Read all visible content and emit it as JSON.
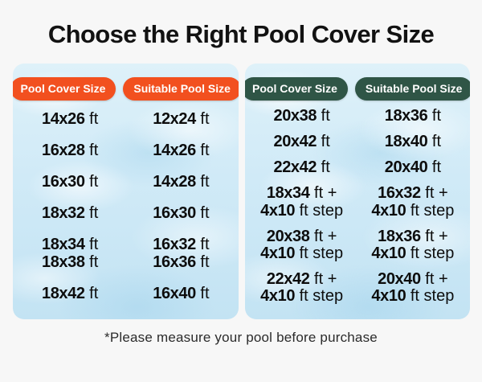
{
  "title": "Choose the Right Pool Cover Size",
  "footnote": "*Please measure your pool before purchase",
  "colors": {
    "page_background": "#f7f7f7",
    "title_text": "#121212",
    "panel_water_blue": "#cfe9f6",
    "left_accent_orange": "#F2501F",
    "right_accent_green": "#2F5546",
    "pill_text": "#FFFFFF",
    "table_text": "#0d0d0d"
  },
  "panels": [
    {
      "name": "standard-sizes",
      "accent": "#F2501F",
      "headers": [
        "Pool Cover Size",
        "Suitable Pool Size"
      ],
      "rows": [
        {
          "cover": [
            "14x26 ft"
          ],
          "pool": [
            "12x24 ft"
          ]
        },
        {
          "cover": [
            "16x28 ft"
          ],
          "pool": [
            "14x26 ft"
          ]
        },
        {
          "cover": [
            "16x30 ft"
          ],
          "pool": [
            "14x28 ft"
          ]
        },
        {
          "cover": [
            "18x32 ft"
          ],
          "pool": [
            "16x30 ft"
          ]
        },
        {
          "cover": [
            "18x34 ft",
            "18x38 ft"
          ],
          "pool": [
            "16x32 ft",
            "16x36 ft"
          ]
        },
        {
          "cover": [
            "18x42 ft"
          ],
          "pool": [
            "16x40 ft"
          ]
        }
      ]
    },
    {
      "name": "large-and-step-sizes",
      "accent": "#2F5546",
      "headers": [
        "Pool Cover Size",
        "Suitable Pool Size"
      ],
      "rows": [
        {
          "cover": [
            "20x38 ft"
          ],
          "pool": [
            "18x36 ft"
          ]
        },
        {
          "cover": [
            "20x42 ft"
          ],
          "pool": [
            "18x40 ft"
          ]
        },
        {
          "cover": [
            "22x42 ft"
          ],
          "pool": [
            "20x40 ft"
          ]
        },
        {
          "cover": [
            "18x34 ft +",
            "4x10 ft step"
          ],
          "pool": [
            "16x32 ft +",
            "4x10 ft step"
          ]
        },
        {
          "cover": [
            "20x38 ft +",
            "4x10 ft step"
          ],
          "pool": [
            "18x36 ft +",
            "4x10 ft step"
          ]
        },
        {
          "cover": [
            "22x42 ft +",
            "4x10 ft step"
          ],
          "pool": [
            "20x40 ft +",
            "4x10 ft step"
          ]
        }
      ]
    }
  ]
}
